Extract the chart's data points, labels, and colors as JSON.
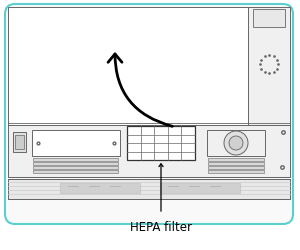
{
  "bg_color": "#ffffff",
  "border_color": "#5BCFCF",
  "outline_color": "#666666",
  "dark_color": "#333333",
  "figure_size": [
    3.0,
    2.51
  ],
  "dpi": 100,
  "label_text": "HEPA filter",
  "label_fontsize": 8.5,
  "grid_rows": 4,
  "grid_cols": 5,
  "panel_fill": "#f8f8f8",
  "strip_fill": "#d8d8d8",
  "hepa_fill": "#ffffff"
}
